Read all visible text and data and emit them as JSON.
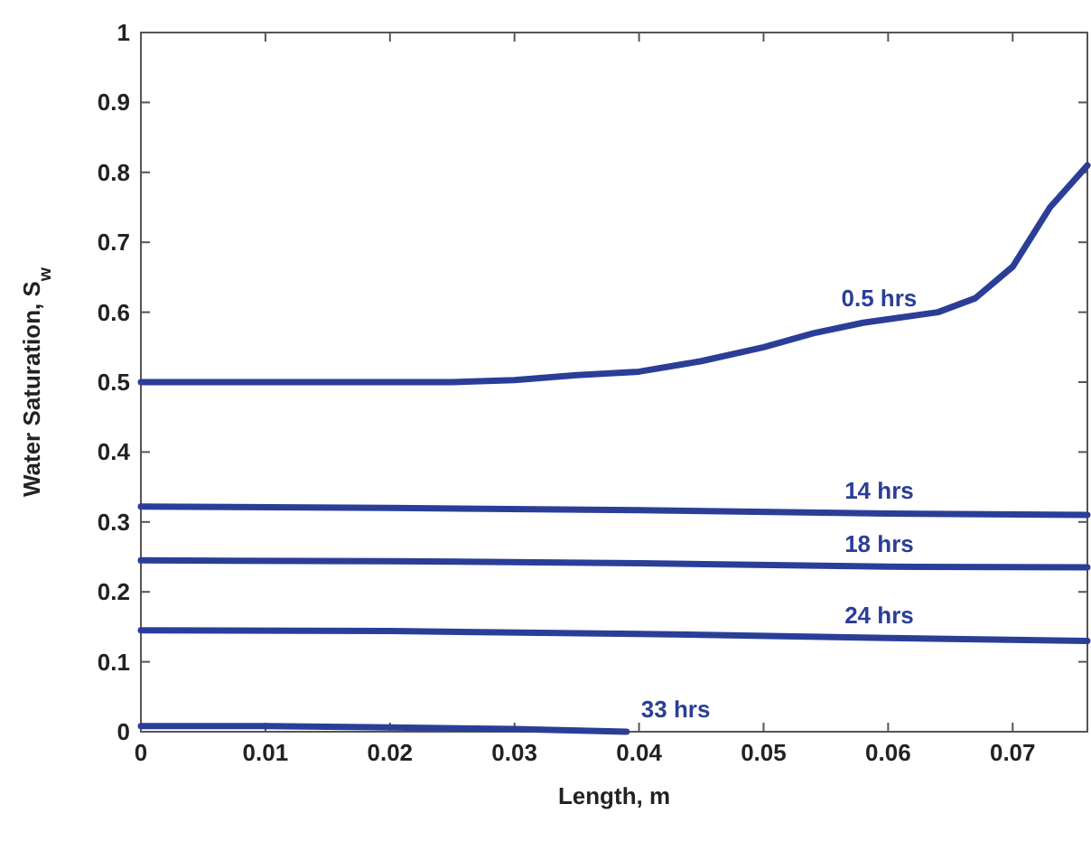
{
  "chart_data": {
    "type": "line",
    "xlabel": "Length, m",
    "ylabel": "Water Saturation, S$_{w}$",
    "xlim": [
      0,
      0.076
    ],
    "ylim": [
      0,
      1
    ],
    "xticks": [
      0,
      0.01,
      0.02,
      0.03,
      0.04,
      0.05,
      0.06,
      0.07
    ],
    "yticks": [
      0,
      0.1,
      0.2,
      0.3,
      0.4,
      0.5,
      0.6,
      0.7,
      0.8,
      0.9,
      1
    ],
    "grid": false,
    "marker": "none",
    "line_style": "solid",
    "series": [
      {
        "name": "0.5 hrs",
        "color": "#2b3e97",
        "x": [
          0,
          0.01,
          0.02,
          0.025,
          0.03,
          0.035,
          0.04,
          0.045,
          0.05,
          0.054,
          0.058,
          0.064,
          0.067,
          0.07,
          0.073,
          0.076
        ],
        "values": [
          0.5,
          0.5,
          0.5,
          0.5,
          0.503,
          0.51,
          0.515,
          0.53,
          0.55,
          0.57,
          0.585,
          0.6,
          0.62,
          0.665,
          0.75,
          0.81
        ]
      },
      {
        "name": "14 hrs",
        "color": "#2b3e97",
        "x": [
          0,
          0.02,
          0.04,
          0.06,
          0.076
        ],
        "values": [
          0.322,
          0.32,
          0.317,
          0.312,
          0.31
        ]
      },
      {
        "name": "18 hrs",
        "color": "#2b3e97",
        "x": [
          0,
          0.02,
          0.04,
          0.06,
          0.076
        ],
        "values": [
          0.245,
          0.244,
          0.241,
          0.236,
          0.235
        ]
      },
      {
        "name": "24 hrs",
        "color": "#2b3e97",
        "x": [
          0,
          0.02,
          0.04,
          0.06,
          0.076
        ],
        "values": [
          0.145,
          0.144,
          0.14,
          0.134,
          0.13
        ]
      },
      {
        "name": "33 hrs",
        "color": "#2b3e97",
        "x": [
          0,
          0.01,
          0.02,
          0.03,
          0.039
        ],
        "values": [
          0.008,
          0.008,
          0.006,
          0.004,
          0
        ]
      }
    ]
  }
}
